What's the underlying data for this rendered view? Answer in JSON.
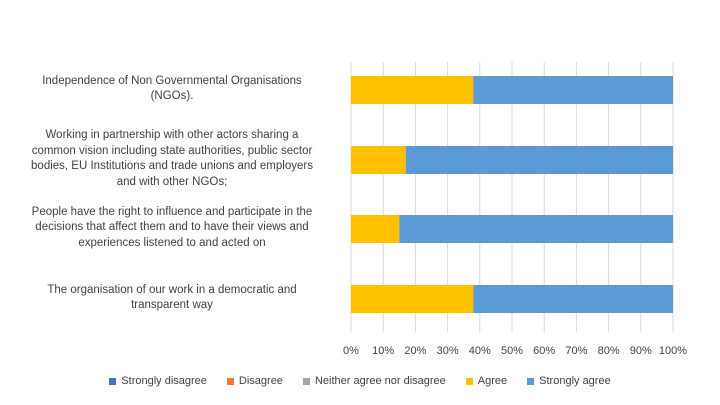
{
  "chart_data": {
    "type": "bar",
    "orientation": "horizontal",
    "stacked": true,
    "title": "",
    "xlabel": "",
    "ylabel": "",
    "xlim": [
      0,
      100
    ],
    "x_ticks": [
      "0%",
      "10%",
      "20%",
      "30%",
      "40%",
      "50%",
      "60%",
      "70%",
      "80%",
      "90%",
      "100%"
    ],
    "categories": [
      "Independence of Non Governmental Organisations (NGOs).",
      "Working in partnership with other actors sharing a common vision including state authorities, public sector bodies, EU Institutions and  trade unions and employers and with other NGOs;",
      "People have the right to influence and participate in the decisions that affect them and to have their views and experiences listened to and acted on",
      "The organisation of our work in a democratic and transparent way"
    ],
    "category_lines": [
      [
        "Independence of Non Governmental Organisations",
        "(NGOs)."
      ],
      [
        "Working in partnership with other actors sharing a",
        "common vision including state authorities, public sector",
        "bodies, EU Institutions and  trade unions and employers",
        "and with other NGOs;"
      ],
      [
        "People have the right to influence and participate in the",
        "decisions that affect them and to have their views and",
        "experiences listened to and acted on"
      ],
      [
        "The organisation of our work in a democratic and",
        "transparent way"
      ]
    ],
    "series": [
      {
        "name": "Strongly disagree",
        "color": "#4472C4",
        "values": [
          0,
          0,
          0,
          0
        ]
      },
      {
        "name": "Disagree",
        "color": "#ED7D31",
        "values": [
          0,
          0,
          0,
          0
        ]
      },
      {
        "name": "Neither agree nor disagree",
        "color": "#A5A5A5",
        "values": [
          0,
          0,
          0,
          0
        ]
      },
      {
        "name": "Agree",
        "color": "#FFC000",
        "values": [
          38,
          17,
          15,
          38
        ]
      },
      {
        "name": "Strongly agree",
        "color": "#5B9BD5",
        "values": [
          62,
          83,
          85,
          62
        ]
      }
    ],
    "legend": "bottom",
    "grid": true
  }
}
